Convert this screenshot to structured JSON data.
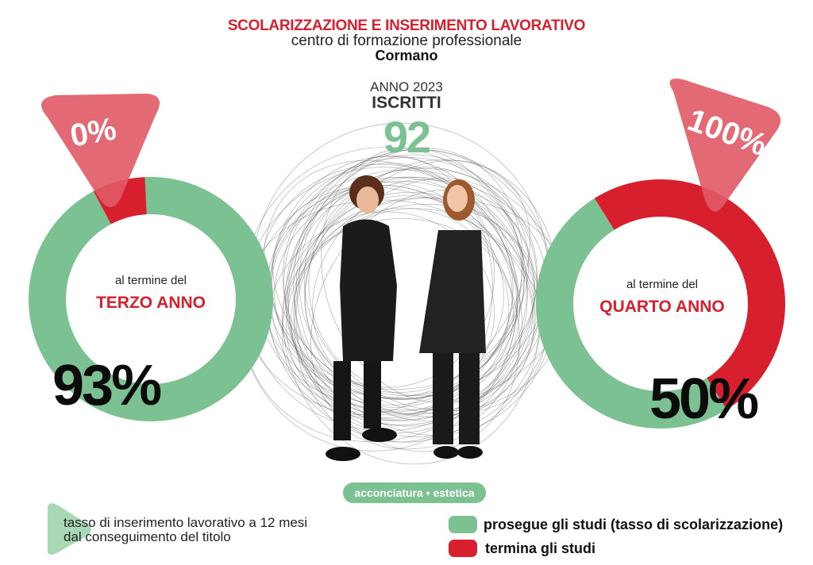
{
  "header": {
    "title": "SCOLARIZZAZIONE E INSERIMENTO LAVORATIVO",
    "subtitle": "centro di formazione professionale",
    "location": "Cormano",
    "year_label": "ANNO 2023",
    "enrolled_label": "ISCRITTI",
    "enrolled_value": "92"
  },
  "colors": {
    "continue": "#7bc192",
    "stop": "#d71f2e",
    "callout": "#e05a66"
  },
  "chart_data": [
    {
      "type": "pie",
      "variant": "donut",
      "caption_line1": "al termine del",
      "caption_line2": "TERZO ANNO",
      "series": [
        {
          "name": "prosegue gli studi (tasso di scolarizzazione)",
          "value": 93
        },
        {
          "name": "termina gli studi",
          "value": 7
        }
      ],
      "value_label": "93%",
      "employment_rate_label": "0%"
    },
    {
      "type": "pie",
      "variant": "donut",
      "caption_line1": "al termine del",
      "caption_line2": "QUARTO ANNO",
      "series": [
        {
          "name": "prosegue gli studi (tasso di scolarizzazione)",
          "value": 50
        },
        {
          "name": "termina gli studi",
          "value": 50
        }
      ],
      "value_label": "50%",
      "employment_rate_label": "100%"
    }
  ],
  "sector_badge": "acconciatura • estetica",
  "legend": {
    "employment_line1": "tasso di inserimento lavorativo a 12 mesi",
    "employment_line2": "dal conseguimento del titolo",
    "continue": "prosegue gli studi (tasso di scolarizzazione)",
    "stop": "termina gli studi"
  }
}
